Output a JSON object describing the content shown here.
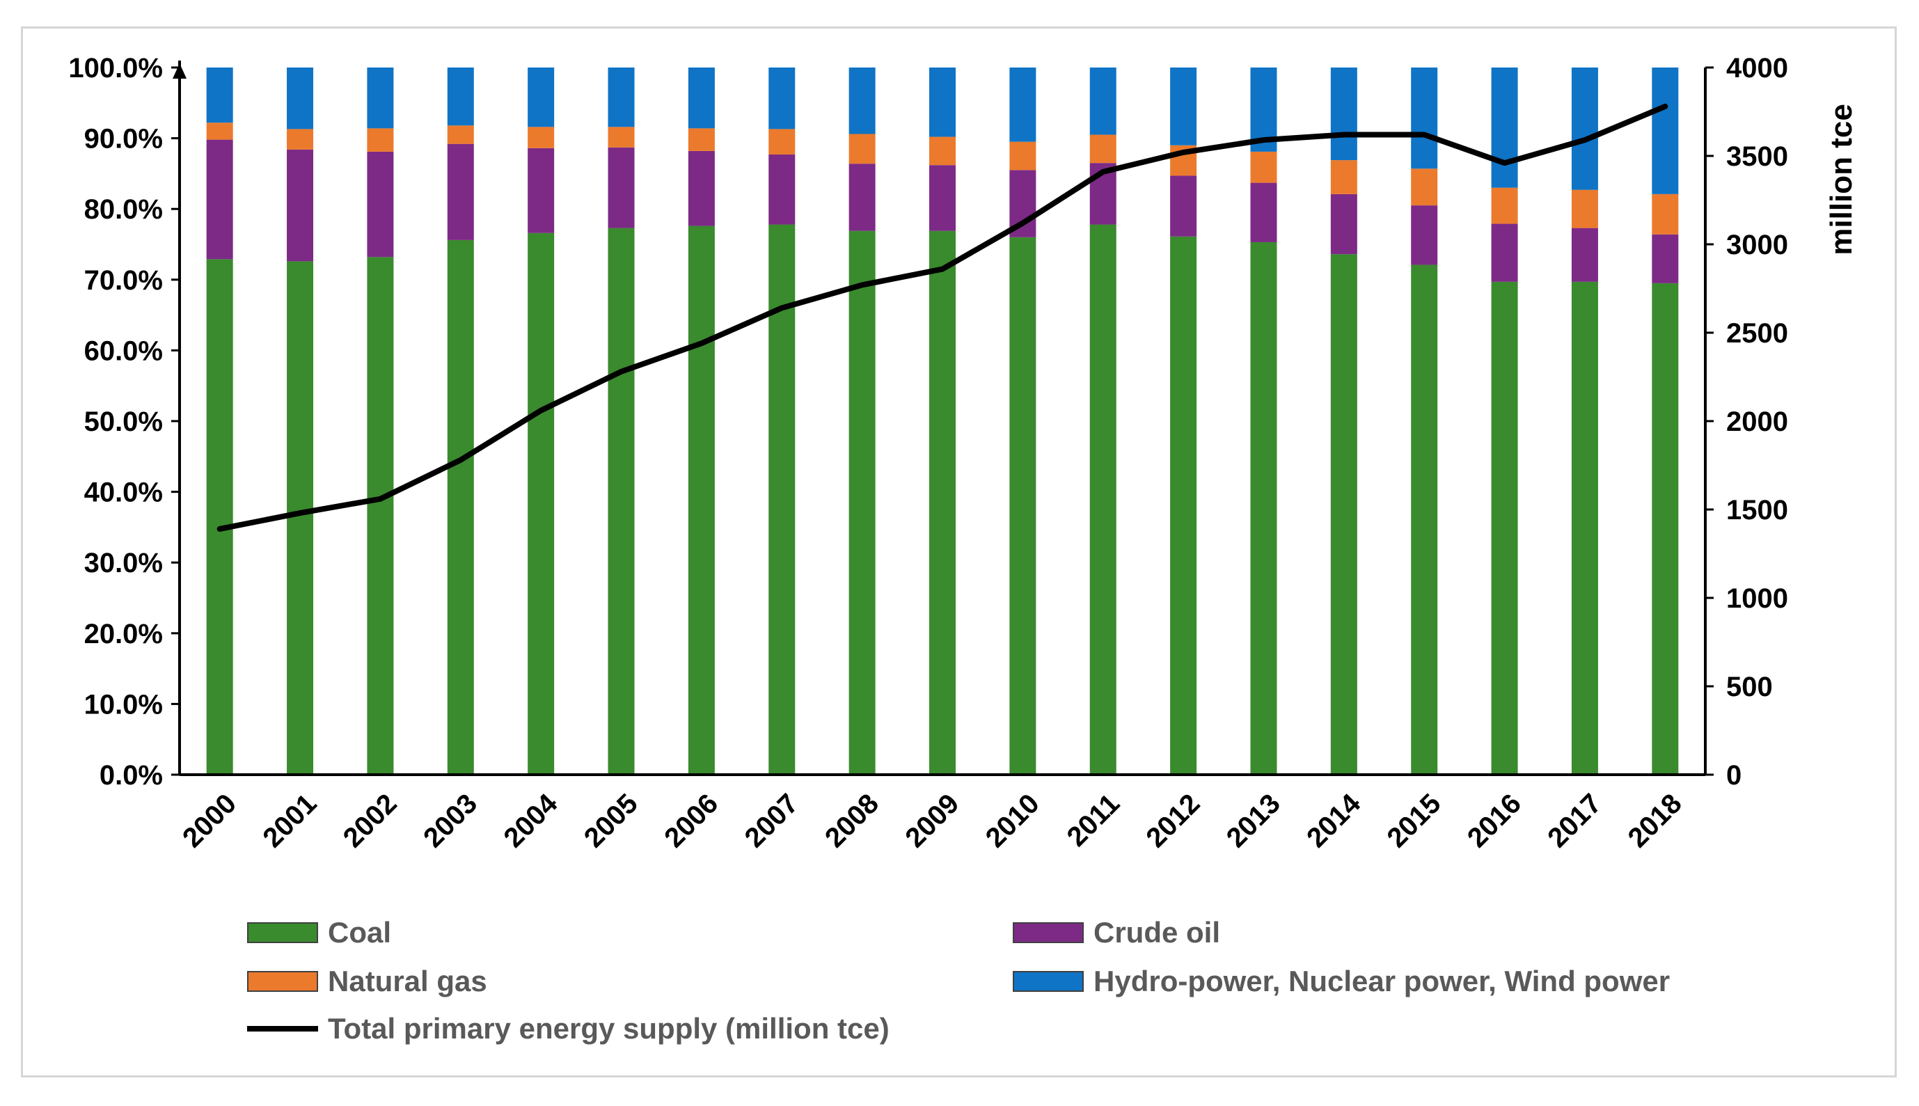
{
  "chart_data": {
    "type": "bar",
    "stacked": true,
    "categories": [
      "2000",
      "2001",
      "2002",
      "2003",
      "2004",
      "2005",
      "2006",
      "2007",
      "2008",
      "2009",
      "2010",
      "2011",
      "2012",
      "2013",
      "2014",
      "2015",
      "2016",
      "2017",
      "2018"
    ],
    "series": [
      {
        "name": "Coal",
        "color": "#3a8a2e",
        "axis": "left",
        "values": [
          72.9,
          72.6,
          73.2,
          75.6,
          76.6,
          77.3,
          77.6,
          77.8,
          76.9,
          76.9,
          76.0,
          77.8,
          76.1,
          75.3,
          73.6,
          72.1,
          69.7,
          69.7,
          69.5
        ]
      },
      {
        "name": "Crude oil",
        "color": "#7c2a86",
        "axis": "left",
        "values": [
          16.9,
          15.8,
          14.9,
          13.6,
          12.0,
          11.4,
          10.6,
          9.9,
          9.5,
          9.3,
          9.5,
          8.7,
          8.6,
          8.4,
          8.5,
          8.4,
          8.2,
          7.6,
          6.9
        ]
      },
      {
        "name": "Natural gas",
        "color": "#ec7a2c",
        "axis": "left",
        "values": [
          2.4,
          2.9,
          3.3,
          2.6,
          3.0,
          2.9,
          3.2,
          3.6,
          4.2,
          4.0,
          4.0,
          4.0,
          4.3,
          4.4,
          4.8,
          5.2,
          5.1,
          5.4,
          5.7
        ]
      },
      {
        "name": "Hydro-power, Nuclear power, Wind power",
        "color": "#0f74c6",
        "axis": "left",
        "values": [
          7.8,
          8.7,
          8.6,
          8.2,
          8.4,
          8.4,
          8.6,
          8.7,
          9.4,
          9.8,
          10.5,
          9.5,
          11.0,
          11.9,
          13.1,
          14.3,
          17.0,
          17.3,
          17.9
        ]
      },
      {
        "name": "Total primary energy supply (million tce)",
        "type": "line",
        "color": "#000000",
        "axis": "right",
        "values": [
          1390,
          1480,
          1560,
          1780,
          2060,
          2280,
          2440,
          2640,
          2770,
          2860,
          3120,
          3410,
          3520,
          3590,
          3620,
          3620,
          3460,
          3590,
          3780
        ]
      }
    ],
    "y_left": {
      "min": 0,
      "max": 100,
      "ticks": [
        "0.0%",
        "10.0%",
        "20.0%",
        "30.0%",
        "40.0%",
        "50.0%",
        "60.0%",
        "70.0%",
        "80.0%",
        "90.0%",
        "100.0%"
      ],
      "label": ""
    },
    "y_right": {
      "min": 0,
      "max": 4000,
      "ticks": [
        "0",
        "500",
        "1000",
        "1500",
        "2000",
        "2500",
        "3000",
        "3500",
        "4000"
      ],
      "label": "million tce"
    },
    "xlabel": "",
    "title": "",
    "legend_position": "bottom",
    "grid": false
  },
  "legend": [
    {
      "label": "Coal",
      "swatch": "box",
      "color": "#3a8a2e"
    },
    {
      "label": "Crude oil",
      "swatch": "box",
      "color": "#7c2a86"
    },
    {
      "label": "Natural gas",
      "swatch": "box",
      "color": "#ec7a2c"
    },
    {
      "label": "Hydro-power, Nuclear power, Wind power",
      "swatch": "box",
      "color": "#0f74c6"
    },
    {
      "label": "Total primary energy supply (million tce)",
      "swatch": "line",
      "color": "#000000"
    }
  ]
}
